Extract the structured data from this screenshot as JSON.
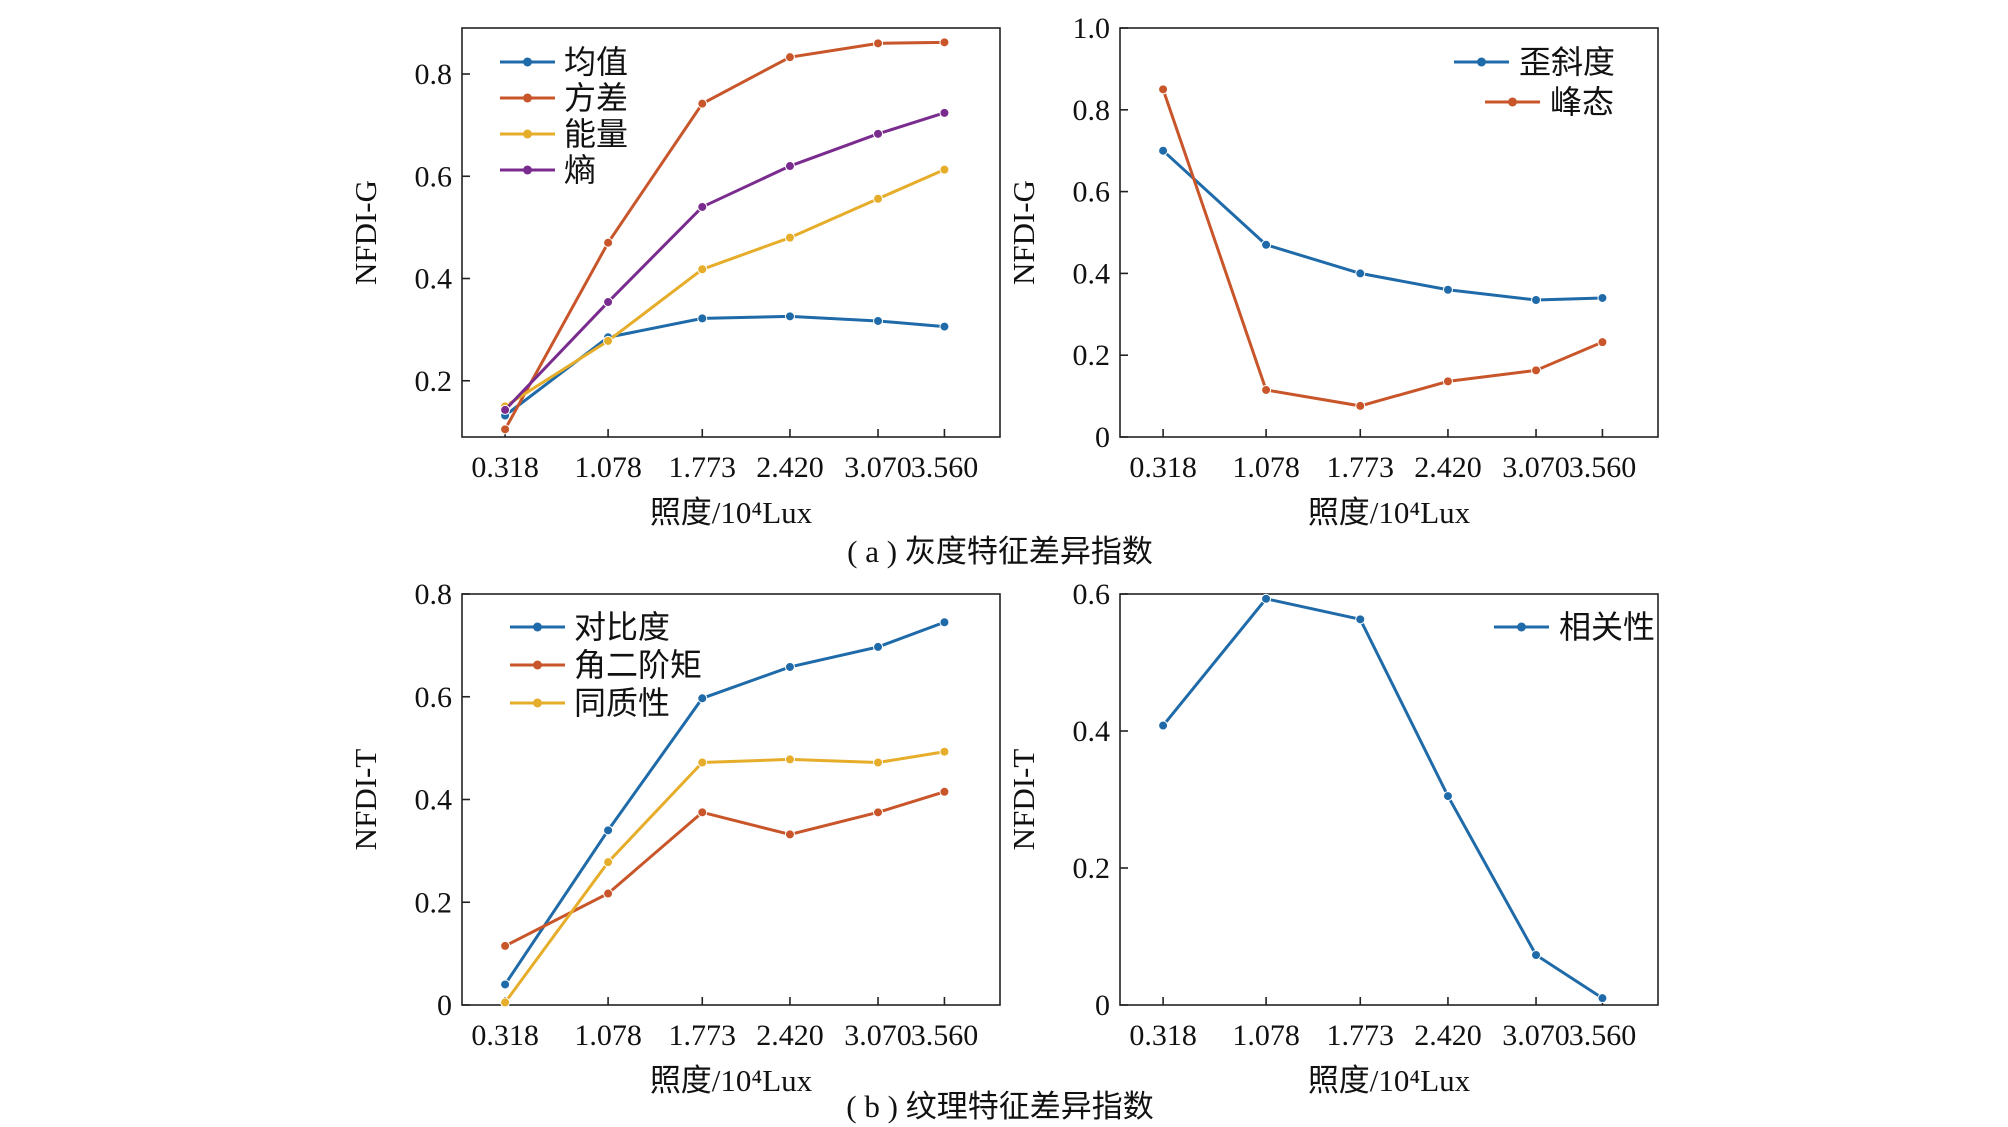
{
  "captions": {
    "a": "( a ) 灰度特征差异指数",
    "b": "( b ) 纹理特征差异指数"
  },
  "chart_data": [
    {
      "id": "gray-1",
      "type": "line",
      "xlabel": "照度/10⁴Lux",
      "ylabel": "NFDI-G",
      "categories": [
        "0.318",
        "1.078",
        "1.773",
        "2.420",
        "3.070",
        "3.560"
      ],
      "x": [
        0.318,
        1.078,
        1.773,
        2.42,
        3.07,
        3.56
      ],
      "xlim": [
        0.0,
        3.97
      ],
      "ylim": [
        0.09,
        0.89
      ],
      "yticks": [
        "0.2",
        "0.4",
        "0.6",
        "0.8"
      ],
      "ytick_values": [
        0.2,
        0.4,
        0.6,
        0.8
      ],
      "legend_position": "top-left",
      "grid": false,
      "series": [
        {
          "name": "均值",
          "color": "#1f6aa8",
          "values": [
            0.132,
            0.285,
            0.322,
            0.326,
            0.317,
            0.306
          ]
        },
        {
          "name": "方差",
          "color": "#c8562a",
          "values": [
            0.105,
            0.47,
            0.742,
            0.833,
            0.86,
            0.862
          ]
        },
        {
          "name": "能量",
          "color": "#e6ad2a",
          "values": [
            0.15,
            0.278,
            0.418,
            0.48,
            0.556,
            0.613
          ]
        },
        {
          "name": "熵",
          "color": "#7a2c8e",
          "values": [
            0.143,
            0.354,
            0.54,
            0.62,
            0.683,
            0.724
          ]
        }
      ]
    },
    {
      "id": "gray-2",
      "type": "line",
      "xlabel": "照度/10⁴Lux",
      "ylabel": "NFDI-G",
      "categories": [
        "0.318",
        "1.078",
        "1.773",
        "2.420",
        "3.070",
        "3.560"
      ],
      "x": [
        0.318,
        1.078,
        1.773,
        2.42,
        3.07,
        3.56
      ],
      "xlim": [
        0.0,
        3.97
      ],
      "ylim": [
        0.0,
        1.0
      ],
      "yticks": [
        "0",
        "0.2",
        "0.4",
        "0.6",
        "0.8",
        "1.0"
      ],
      "ytick_values": [
        0,
        0.2,
        0.4,
        0.6,
        0.8,
        1.0
      ],
      "legend_position": "top-right",
      "grid": false,
      "series": [
        {
          "name": "歪斜度",
          "color": "#1f6aa8",
          "values": [
            0.7,
            0.47,
            0.4,
            0.36,
            0.335,
            0.34
          ]
        },
        {
          "name": "峰态",
          "color": "#c8562a",
          "values": [
            0.85,
            0.115,
            0.076,
            0.136,
            0.163,
            0.232
          ]
        }
      ]
    },
    {
      "id": "texture-1",
      "type": "line",
      "xlabel": "照度/10⁴Lux",
      "ylabel": "NFDI-T",
      "categories": [
        "0.318",
        "1.078",
        "1.773",
        "2.420",
        "3.070",
        "3.560"
      ],
      "x": [
        0.318,
        1.078,
        1.773,
        2.42,
        3.07,
        3.56
      ],
      "xlim": [
        0.0,
        3.97
      ],
      "ylim": [
        0.0,
        0.8
      ],
      "yticks": [
        "0",
        "0.2",
        "0.4",
        "0.6",
        "0.8"
      ],
      "ytick_values": [
        0,
        0.2,
        0.4,
        0.6,
        0.8
      ],
      "legend_position": "top-left",
      "grid": false,
      "series": [
        {
          "name": "对比度",
          "color": "#1f6aa8",
          "values": [
            0.04,
            0.34,
            0.597,
            0.658,
            0.697,
            0.745
          ]
        },
        {
          "name": "角二阶矩",
          "color": "#c8562a",
          "values": [
            0.115,
            0.217,
            0.375,
            0.332,
            0.375,
            0.415
          ]
        },
        {
          "name": "同质性",
          "color": "#e6ad2a",
          "values": [
            0.005,
            0.278,
            0.472,
            0.478,
            0.472,
            0.493
          ]
        }
      ]
    },
    {
      "id": "texture-2",
      "type": "line",
      "xlabel": "照度/10⁴Lux",
      "ylabel": "NFDI-T",
      "categories": [
        "0.318",
        "1.078",
        "1.773",
        "2.420",
        "3.070",
        "3.560"
      ],
      "x": [
        0.318,
        1.078,
        1.773,
        2.42,
        3.07,
        3.56
      ],
      "xlim": [
        0.0,
        3.97
      ],
      "ylim": [
        0.0,
        0.6
      ],
      "yticks": [
        "0",
        "0.2",
        "0.4",
        "0.6"
      ],
      "ytick_values": [
        0,
        0.2,
        0.4,
        0.6
      ],
      "legend_position": "top-right",
      "grid": false,
      "series": [
        {
          "name": "相关性",
          "color": "#1f6aa8",
          "values": [
            0.408,
            0.593,
            0.563,
            0.305,
            0.073,
            0.01
          ]
        }
      ]
    }
  ]
}
